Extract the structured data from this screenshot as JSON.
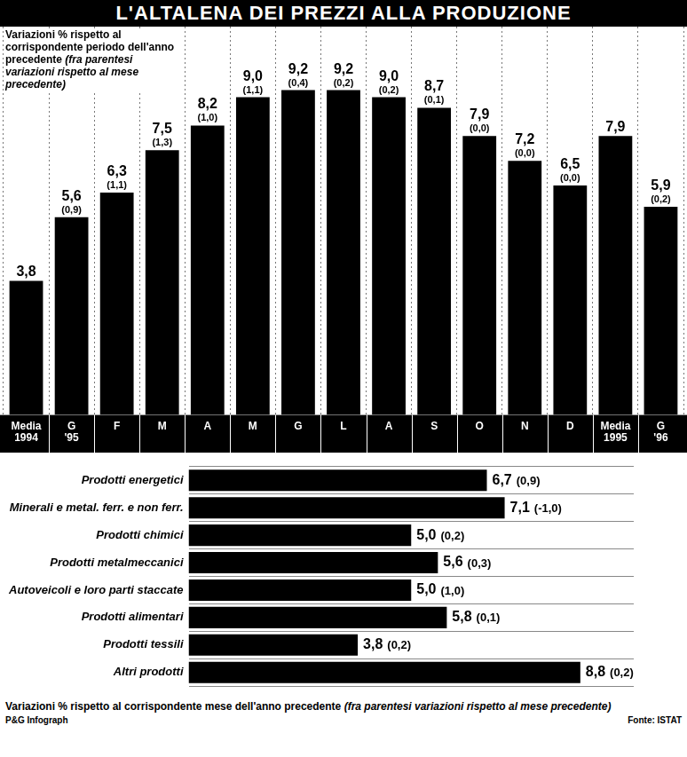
{
  "chart_data": [
    {
      "type": "bar",
      "title": "L'ALTALENA DEI PREZZI ALLA PRODUZIONE",
      "subtitle": "Variazioni % rispetto al corrispondente periodo dell'anno precedente (fra parentesi variazioni rispetto al mese precedente)",
      "categories": [
        "Media 1994",
        "G '95",
        "F",
        "M",
        "A",
        "M",
        "G",
        "L",
        "A",
        "S",
        "O",
        "N",
        "D",
        "Media 1995",
        "G '96"
      ],
      "values": [
        3.8,
        5.6,
        6.3,
        7.5,
        8.2,
        9.0,
        9.2,
        9.2,
        9.0,
        8.7,
        7.9,
        7.2,
        6.5,
        7.9,
        5.9
      ],
      "value_labels": [
        "3,8",
        "5,6",
        "6,3",
        "7,5",
        "8,2",
        "9,0",
        "9,2",
        "9,2",
        "9,0",
        "8,7",
        "7,9",
        "7,2",
        "6,5",
        "7,9",
        "5,9"
      ],
      "changes": [
        null,
        0.9,
        1.1,
        1.3,
        1.0,
        1.1,
        0.4,
        0.2,
        0.2,
        0.1,
        0.0,
        0.0,
        0.0,
        null,
        0.2
      ],
      "change_labels": [
        null,
        "(0,9)",
        "(1,1)",
        "(1,3)",
        "(1,0)",
        "(1,1)",
        "(0,4)",
        "(0,2)",
        "(0,2)",
        "(0,1)",
        "(0,0)",
        "(0,0)",
        "(0,0)",
        null,
        "(0,2)"
      ],
      "color": "#000000",
      "ylim": [
        0,
        11
      ],
      "grid": true,
      "data_labels": true,
      "tick_labels": "x"
    },
    {
      "type": "bar",
      "orientation": "horizontal",
      "subtitle": "Variazioni % rispetto al corrispondente mese dell'anno precedente (fra parentesi variazioni rispetto al mese precedente)",
      "categories": [
        "Prodotti energetici",
        "Minerali e metal. ferr. e non ferr.",
        "Prodotti chimici",
        "Prodotti metalmeccanici",
        "Autoveicoli e loro parti staccate",
        "Prodotti alimentari",
        "Prodotti tessili",
        "Altri prodotti"
      ],
      "values": [
        6.7,
        7.1,
        5.0,
        5.6,
        5.0,
        5.8,
        3.8,
        8.8
      ],
      "value_labels": [
        "6,7",
        "7,1",
        "5,0",
        "5,6",
        "5,0",
        "5,8",
        "3,8",
        "8,8"
      ],
      "changes": [
        0.9,
        -1.0,
        0.2,
        0.3,
        1.0,
        0.1,
        0.2,
        0.2
      ],
      "change_labels": [
        "(0,9)",
        "(-1,0)",
        "(0,2)",
        "(0,3)",
        "(1,0)",
        "(0,1)",
        "(0,2)",
        "(0,2)"
      ],
      "color": "#000000",
      "xlim": [
        0,
        10
      ],
      "grid": true,
      "data_labels": true,
      "tick_labels": "y"
    }
  ],
  "footer": {
    "credit": "P&G Infograph",
    "source": "Fonte: ISTAT"
  }
}
